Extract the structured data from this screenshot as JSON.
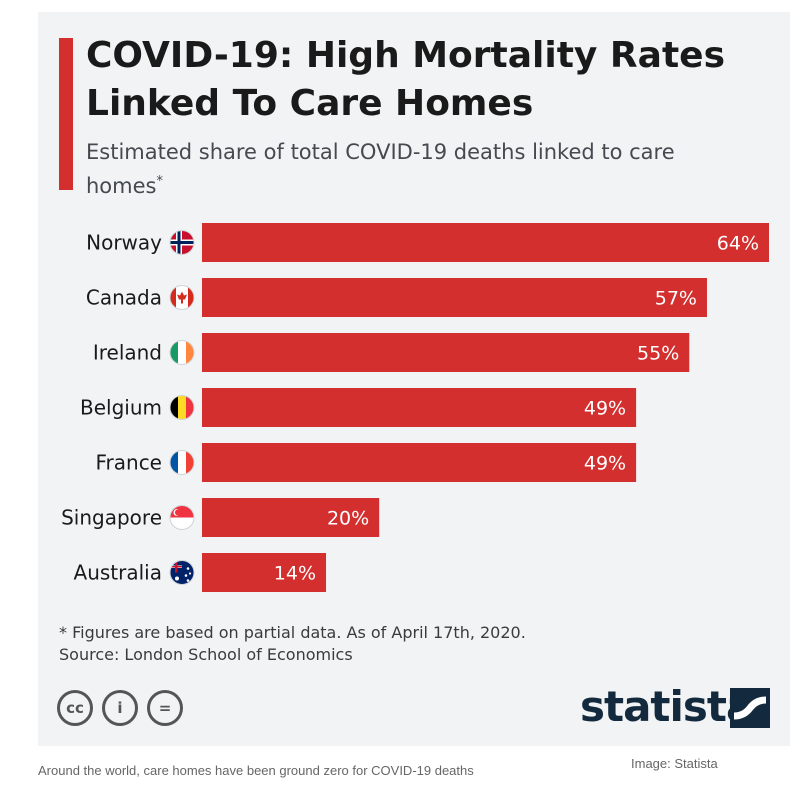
{
  "chart_data": {
    "type": "bar",
    "orientation": "horizontal",
    "title": "COVID-19: High Mortality Rates Linked To Care Homes",
    "subtitle": "Estimated share of total COVID-19 deaths linked to care homes",
    "subtitle_marker": "*",
    "categories": [
      "Norway",
      "Canada",
      "Ireland",
      "Belgium",
      "France",
      "Singapore",
      "Australia"
    ],
    "values": [
      64,
      57,
      55,
      49,
      49,
      20,
      14
    ],
    "value_labels": [
      "64%",
      "57%",
      "55%",
      "49%",
      "49%",
      "20%",
      "14%"
    ],
    "flags": [
      "norway-flag-icon",
      "canada-flag-icon",
      "ireland-flag-icon",
      "belgium-flag-icon",
      "france-flag-icon",
      "singapore-flag-icon",
      "australia-flag-icon"
    ],
    "xlim": [
      0,
      64
    ],
    "bar_color": "#d32f2f",
    "grid": false,
    "legend": "none"
  },
  "footnote": {
    "note": "* Figures are based on partial data. As of April 17th, 2020.",
    "source": "Source: London School of Economics"
  },
  "brand": {
    "logo_text": "statista",
    "license_icons": [
      "cc-icon",
      "attribution-icon",
      "no-derivatives-icon"
    ],
    "license_glyphs": [
      "cc",
      "i",
      "="
    ]
  },
  "colors": {
    "accent": "#d32f2f",
    "card_background": "#f2f3f4",
    "logo": "#13293d"
  },
  "page": {
    "caption": "Around the world, care homes have been ground zero for COVID-19 deaths",
    "credit": "Image: Statista"
  }
}
